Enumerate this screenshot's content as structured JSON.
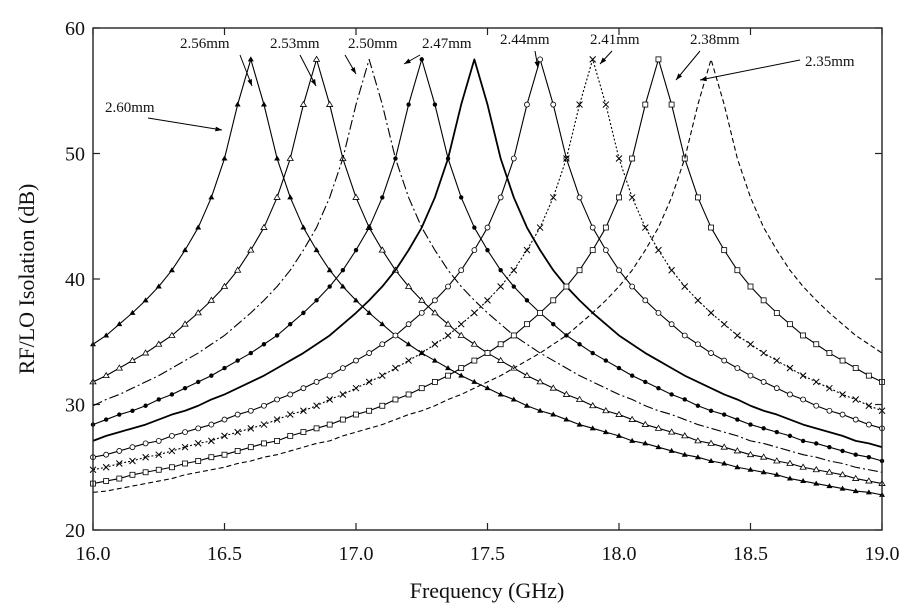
{
  "chart_data": {
    "type": "line",
    "x_label": "Frequency (GHz)",
    "y_label": "RF/LO Isolation (dB)",
    "x": [
      16.0,
      16.05,
      16.1,
      16.15,
      16.2,
      16.25,
      16.3,
      16.35,
      16.4,
      16.45,
      16.5,
      16.55,
      16.6,
      16.65,
      16.7,
      16.75,
      16.8,
      16.85,
      16.9,
      16.95,
      17.0,
      17.05,
      17.1,
      17.15,
      17.2,
      17.25,
      17.3,
      17.35,
      17.4,
      17.45,
      17.5,
      17.55,
      17.6,
      17.65,
      17.7,
      17.75,
      17.8,
      17.85,
      17.9,
      17.95,
      18.0,
      18.05,
      18.1,
      18.15,
      18.2,
      18.25,
      18.3,
      18.35,
      18.4,
      18.45,
      18.5,
      18.55,
      18.6,
      18.65,
      18.7,
      18.75,
      18.8,
      18.85,
      18.9,
      18.95,
      19.0
    ],
    "xlim": [
      16.0,
      19.0
    ],
    "xticks": [
      {
        "value": 16,
        "label": "16.0"
      },
      16.5,
      {
        "value": 17,
        "label": "17.0"
      },
      17.5,
      {
        "value": 18,
        "label": "18.0"
      },
      18.5,
      {
        "value": 19,
        "label": "19.0"
      }
    ],
    "ylim": [
      20,
      60
    ],
    "yticks": [
      20,
      30,
      40,
      50,
      60
    ],
    "series": [
      {
        "name": "2.60mm",
        "color": "#000000",
        "dash": "none",
        "marker": "triangle-filled",
        "values": [
          34.8,
          35.5,
          36.4,
          37.3,
          38.3,
          39.4,
          40.7,
          42.3,
          44.1,
          46.5,
          49.6,
          53.9,
          57.5,
          53.9,
          49.6,
          46.5,
          44.1,
          42.3,
          40.7,
          39.4,
          38.3,
          37.3,
          36.4,
          35.5,
          34.8,
          34.1,
          33.5,
          32.9,
          32.3,
          31.8,
          31.3,
          30.8,
          30.4,
          29.9,
          29.5,
          29.2,
          28.8,
          28.4,
          28.1,
          27.8,
          27.5,
          27.1,
          26.9,
          26.6,
          26.3,
          26.0,
          25.8,
          25.5,
          25.3,
          25.0,
          24.8,
          24.6,
          24.4,
          24.1,
          23.9,
          23.7,
          23.5,
          23.3,
          23.1,
          23.0,
          22.8
        ]
      },
      {
        "name": "2.56mm",
        "color": "#000000",
        "dash": "none",
        "marker": "triangle-open",
        "values": [
          31.8,
          32.3,
          32.9,
          33.5,
          34.1,
          34.8,
          35.5,
          36.4,
          37.3,
          38.3,
          39.4,
          40.7,
          42.3,
          44.1,
          46.5,
          49.6,
          53.9,
          57.5,
          53.9,
          49.6,
          46.5,
          44.1,
          42.3,
          40.7,
          39.4,
          38.3,
          37.3,
          36.4,
          35.5,
          34.8,
          34.1,
          33.5,
          32.9,
          32.3,
          31.8,
          31.3,
          30.8,
          30.4,
          29.9,
          29.5,
          29.2,
          28.8,
          28.4,
          28.1,
          27.8,
          27.5,
          27.1,
          26.9,
          26.6,
          26.3,
          26.0,
          25.8,
          25.5,
          25.3,
          25.0,
          24.8,
          24.6,
          24.4,
          24.1,
          23.9,
          23.7
        ]
      },
      {
        "name": "2.53mm",
        "color": "#000000",
        "dash": "10 3 2 3",
        "marker": "none",
        "values": [
          29.9,
          30.4,
          30.8,
          31.3,
          31.8,
          32.3,
          32.9,
          33.5,
          34.1,
          34.8,
          35.5,
          36.4,
          37.3,
          38.3,
          39.4,
          40.7,
          42.3,
          44.1,
          46.5,
          49.6,
          53.9,
          57.5,
          53.9,
          49.6,
          46.5,
          44.1,
          42.3,
          40.7,
          39.4,
          38.3,
          37.3,
          36.4,
          35.5,
          34.8,
          34.1,
          33.5,
          32.9,
          32.3,
          31.8,
          31.3,
          30.8,
          30.4,
          29.9,
          29.5,
          29.2,
          28.8,
          28.4,
          28.1,
          27.8,
          27.5,
          27.1,
          26.9,
          26.6,
          26.3,
          26.0,
          25.8,
          25.5,
          25.3,
          25.0,
          24.8,
          24.6
        ]
      },
      {
        "name": "2.50mm",
        "color": "#000000",
        "dash": "none",
        "marker": "dot",
        "values": [
          28.4,
          28.8,
          29.2,
          29.5,
          29.9,
          30.4,
          30.8,
          31.3,
          31.8,
          32.3,
          32.9,
          33.5,
          34.1,
          34.8,
          35.5,
          36.4,
          37.3,
          38.3,
          39.4,
          40.7,
          42.3,
          44.1,
          46.5,
          49.6,
          53.9,
          57.5,
          53.9,
          49.6,
          46.5,
          44.1,
          42.3,
          40.7,
          39.4,
          38.3,
          37.3,
          36.4,
          35.5,
          34.8,
          34.1,
          33.5,
          32.9,
          32.3,
          31.8,
          31.3,
          30.8,
          30.4,
          29.9,
          29.5,
          29.2,
          28.8,
          28.4,
          28.1,
          27.8,
          27.5,
          27.1,
          26.9,
          26.6,
          26.3,
          26.0,
          25.8,
          25.5
        ]
      },
      {
        "name": "2.47mm",
        "color": "#000000",
        "dash": "none",
        "marker": "none",
        "values": [
          27.1,
          27.5,
          27.8,
          28.1,
          28.4,
          28.8,
          29.2,
          29.5,
          29.9,
          30.4,
          30.8,
          31.3,
          31.8,
          32.3,
          32.9,
          33.5,
          34.1,
          34.8,
          35.5,
          36.4,
          37.3,
          38.3,
          39.4,
          40.7,
          42.3,
          44.1,
          46.5,
          49.6,
          53.9,
          57.5,
          53.9,
          49.6,
          46.5,
          44.1,
          42.3,
          40.7,
          39.4,
          38.3,
          37.3,
          36.4,
          35.5,
          34.8,
          34.1,
          33.5,
          32.9,
          32.3,
          31.8,
          31.3,
          30.8,
          30.4,
          29.9,
          29.5,
          29.2,
          28.8,
          28.4,
          28.1,
          27.8,
          27.5,
          27.1,
          26.9,
          26.6
        ]
      },
      {
        "name": "2.44mm",
        "color": "#000000",
        "dash": "none",
        "marker": "circle-open",
        "values": [
          25.8,
          26.0,
          26.3,
          26.6,
          26.9,
          27.1,
          27.5,
          27.8,
          28.1,
          28.4,
          28.8,
          29.2,
          29.5,
          29.9,
          30.4,
          30.8,
          31.3,
          31.8,
          32.3,
          32.9,
          33.5,
          34.1,
          34.8,
          35.5,
          36.4,
          37.3,
          38.3,
          39.4,
          40.7,
          42.3,
          44.1,
          46.5,
          49.6,
          53.9,
          57.5,
          53.9,
          49.6,
          46.5,
          44.1,
          42.3,
          40.7,
          39.4,
          38.3,
          37.3,
          36.4,
          35.5,
          34.8,
          34.1,
          33.5,
          32.9,
          32.3,
          31.8,
          31.3,
          30.8,
          30.4,
          29.9,
          29.5,
          29.2,
          28.8,
          28.4,
          28.1
        ]
      },
      {
        "name": "2.41mm",
        "color": "#000000",
        "dash": "2 2",
        "marker": "cross",
        "values": [
          24.8,
          25.0,
          25.3,
          25.5,
          25.8,
          26.0,
          26.3,
          26.6,
          26.9,
          27.1,
          27.5,
          27.8,
          28.1,
          28.4,
          28.8,
          29.2,
          29.5,
          29.9,
          30.4,
          30.8,
          31.3,
          31.8,
          32.3,
          32.9,
          33.5,
          34.1,
          34.8,
          35.5,
          36.4,
          37.3,
          38.3,
          39.4,
          40.7,
          42.3,
          44.1,
          46.5,
          49.6,
          53.9,
          57.5,
          53.9,
          49.6,
          46.5,
          44.1,
          42.3,
          40.7,
          39.4,
          38.3,
          37.3,
          36.4,
          35.5,
          34.8,
          34.1,
          33.5,
          32.9,
          32.3,
          31.8,
          31.3,
          30.8,
          30.4,
          29.9,
          29.5
        ]
      },
      {
        "name": "2.38mm",
        "color": "#000000",
        "dash": "none",
        "marker": "square-open",
        "values": [
          23.7,
          23.9,
          24.1,
          24.4,
          24.6,
          24.8,
          25.0,
          25.3,
          25.5,
          25.8,
          26.0,
          26.3,
          26.6,
          26.9,
          27.1,
          27.5,
          27.8,
          28.1,
          28.4,
          28.8,
          29.2,
          29.5,
          29.9,
          30.4,
          30.8,
          31.3,
          31.8,
          32.3,
          32.9,
          33.5,
          34.1,
          34.8,
          35.5,
          36.4,
          37.3,
          38.3,
          39.4,
          40.7,
          42.3,
          44.1,
          46.5,
          49.6,
          53.9,
          57.5,
          53.9,
          49.6,
          46.5,
          44.1,
          42.3,
          40.7,
          39.4,
          38.3,
          37.3,
          36.4,
          35.5,
          34.8,
          34.1,
          33.5,
          32.9,
          32.3,
          31.8
        ]
      },
      {
        "name": "2.35mm",
        "color": "#000000",
        "dash": "5 3",
        "marker": "none",
        "values": [
          23.0,
          23.1,
          23.3,
          23.5,
          23.7,
          23.9,
          24.1,
          24.4,
          24.6,
          24.8,
          25.0,
          25.3,
          25.5,
          25.8,
          26.0,
          26.3,
          26.6,
          26.9,
          27.1,
          27.5,
          27.8,
          28.1,
          28.4,
          28.8,
          29.2,
          29.5,
          29.9,
          30.4,
          30.8,
          31.3,
          31.8,
          32.3,
          32.9,
          33.5,
          34.1,
          34.8,
          35.5,
          36.4,
          37.3,
          38.3,
          39.4,
          40.7,
          42.3,
          44.1,
          46.5,
          49.6,
          53.9,
          57.5,
          53.9,
          49.6,
          46.5,
          44.1,
          42.3,
          40.7,
          39.4,
          38.3,
          37.3,
          36.4,
          35.5,
          34.8,
          34.1
        ]
      }
    ]
  }
}
